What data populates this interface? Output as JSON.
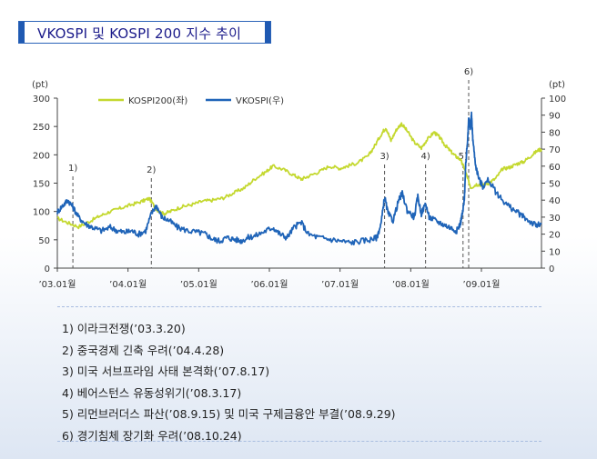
{
  "title": "VKOSPI 및 KOSPI 200 지수 추이",
  "colors": {
    "kospi200": "#c4d82f",
    "vkospi": "#1f64b8",
    "accent": "#1f59b2"
  },
  "notes": [
    "1) 이라크전쟁(’03.3.20)",
    "2) 중국경제 긴축 우려(’04.4.28)",
    "3) 미국 서브프라임 사태 본격화(’07.8.17)",
    "4) 베어스턴스 유동성위기(’08.3.17)",
    "5) 리먼브러더스 파산(’08.9.15) 및 미국 구제금융안 부결(’08.9.29)",
    "6) 경기침체 장기화 우려(’08.10.24)"
  ],
  "chart_data": {
    "type": "line",
    "left_axis_unit": "(pt)",
    "right_axis_unit": "(pt)",
    "ylim_left": [
      0,
      300
    ],
    "ylim_right": [
      0,
      100
    ],
    "left_ticks": [
      0,
      50,
      100,
      150,
      200,
      250,
      300
    ],
    "right_ticks": [
      0,
      10,
      20,
      30,
      40,
      50,
      60,
      70,
      80,
      90,
      100
    ],
    "x_ticks": [
      {
        "label": "’03.01월",
        "t": 2003.0
      },
      {
        "label": "’04.01월",
        "t": 2004.0
      },
      {
        "label": "’05.01월",
        "t": 2005.0
      },
      {
        "label": "’06.01월",
        "t": 2006.0
      },
      {
        "label": "’07.01월",
        "t": 2007.0
      },
      {
        "label": "’08.01월",
        "t": 2008.0
      },
      {
        "label": "’09.01월",
        "t": 2009.0
      }
    ],
    "xlim": [
      2003.0,
      2009.85
    ],
    "series": [
      {
        "name": "KOSPI200(좌)",
        "axis": "left",
        "color": "#c4d82f",
        "points": [
          [
            2003.0,
            88
          ],
          [
            2003.15,
            80
          ],
          [
            2003.3,
            73
          ],
          [
            2003.45,
            82
          ],
          [
            2003.6,
            92
          ],
          [
            2003.75,
            100
          ],
          [
            2003.9,
            106
          ],
          [
            2004.05,
            112
          ],
          [
            2004.2,
            118
          ],
          [
            2004.3,
            123
          ],
          [
            2004.4,
            104
          ],
          [
            2004.5,
            96
          ],
          [
            2004.6,
            100
          ],
          [
            2004.75,
            108
          ],
          [
            2004.9,
            112
          ],
          [
            2005.05,
            118
          ],
          [
            2005.2,
            120
          ],
          [
            2005.35,
            124
          ],
          [
            2005.5,
            133
          ],
          [
            2005.65,
            142
          ],
          [
            2005.8,
            158
          ],
          [
            2005.95,
            170
          ],
          [
            2006.05,
            180
          ],
          [
            2006.2,
            174
          ],
          [
            2006.35,
            164
          ],
          [
            2006.45,
            157
          ],
          [
            2006.55,
            162
          ],
          [
            2006.7,
            170
          ],
          [
            2006.85,
            180
          ],
          [
            2007.0,
            176
          ],
          [
            2007.1,
            180
          ],
          [
            2007.25,
            186
          ],
          [
            2007.4,
            198
          ],
          [
            2007.5,
            218
          ],
          [
            2007.6,
            240
          ],
          [
            2007.65,
            248
          ],
          [
            2007.72,
            225
          ],
          [
            2007.8,
            245
          ],
          [
            2007.87,
            255
          ],
          [
            2007.95,
            242
          ],
          [
            2008.05,
            222
          ],
          [
            2008.15,
            212
          ],
          [
            2008.22,
            225
          ],
          [
            2008.33,
            240
          ],
          [
            2008.4,
            232
          ],
          [
            2008.48,
            218
          ],
          [
            2008.55,
            208
          ],
          [
            2008.63,
            198
          ],
          [
            2008.7,
            192
          ],
          [
            2008.76,
            176
          ],
          [
            2008.8,
            160
          ],
          [
            2008.85,
            142
          ],
          [
            2008.93,
            148
          ],
          [
            2009.0,
            147
          ],
          [
            2009.1,
            150
          ],
          [
            2009.2,
            158
          ],
          [
            2009.3,
            175
          ],
          [
            2009.4,
            178
          ],
          [
            2009.5,
            184
          ],
          [
            2009.6,
            188
          ],
          [
            2009.7,
            198
          ],
          [
            2009.8,
            208
          ],
          [
            2009.85,
            210
          ]
        ]
      },
      {
        "name": "VKOSPI(우)",
        "axis": "right",
        "color": "#1f64b8",
        "points": [
          [
            2003.0,
            33
          ],
          [
            2003.08,
            37
          ],
          [
            2003.15,
            40
          ],
          [
            2003.22,
            36
          ],
          [
            2003.3,
            30
          ],
          [
            2003.4,
            26
          ],
          [
            2003.5,
            24
          ],
          [
            2003.62,
            22
          ],
          [
            2003.75,
            24
          ],
          [
            2003.85,
            22
          ],
          [
            2003.95,
            21
          ],
          [
            2004.05,
            22
          ],
          [
            2004.15,
            20
          ],
          [
            2004.25,
            22
          ],
          [
            2004.33,
            32
          ],
          [
            2004.4,
            37
          ],
          [
            2004.48,
            30
          ],
          [
            2004.58,
            28
          ],
          [
            2004.7,
            24
          ],
          [
            2004.85,
            22
          ],
          [
            2005.0,
            21
          ],
          [
            2005.1,
            20
          ],
          [
            2005.2,
            17
          ],
          [
            2005.3,
            16
          ],
          [
            2005.4,
            18
          ],
          [
            2005.5,
            17
          ],
          [
            2005.6,
            16
          ],
          [
            2005.7,
            18
          ],
          [
            2005.8,
            19
          ],
          [
            2005.95,
            22
          ],
          [
            2006.05,
            24
          ],
          [
            2006.15,
            20
          ],
          [
            2006.25,
            18
          ],
          [
            2006.35,
            24
          ],
          [
            2006.45,
            27
          ],
          [
            2006.55,
            20
          ],
          [
            2006.7,
            18
          ],
          [
            2006.85,
            17
          ],
          [
            2007.0,
            16
          ],
          [
            2007.15,
            15
          ],
          [
            2007.3,
            16
          ],
          [
            2007.45,
            17
          ],
          [
            2007.52,
            18
          ],
          [
            2007.58,
            26
          ],
          [
            2007.63,
            42
          ],
          [
            2007.68,
            32
          ],
          [
            2007.75,
            28
          ],
          [
            2007.83,
            40
          ],
          [
            2007.88,
            44
          ],
          [
            2007.95,
            34
          ],
          [
            2008.05,
            30
          ],
          [
            2008.1,
            42
          ],
          [
            2008.15,
            32
          ],
          [
            2008.21,
            38
          ],
          [
            2008.26,
            30
          ],
          [
            2008.35,
            28
          ],
          [
            2008.45,
            26
          ],
          [
            2008.55,
            24
          ],
          [
            2008.65,
            22
          ],
          [
            2008.7,
            26
          ],
          [
            2008.72,
            30
          ],
          [
            2008.74,
            34
          ],
          [
            2008.76,
            42
          ],
          [
            2008.78,
            62
          ],
          [
            2008.8,
            73
          ],
          [
            2008.82,
            88
          ],
          [
            2008.84,
            82
          ],
          [
            2008.86,
            90
          ],
          [
            2008.88,
            75
          ],
          [
            2008.92,
            60
          ],
          [
            2008.97,
            52
          ],
          [
            2009.02,
            48
          ],
          [
            2009.1,
            52
          ],
          [
            2009.2,
            45
          ],
          [
            2009.3,
            40
          ],
          [
            2009.4,
            36
          ],
          [
            2009.5,
            33
          ],
          [
            2009.6,
            30
          ],
          [
            2009.7,
            27
          ],
          [
            2009.78,
            25
          ],
          [
            2009.85,
            26
          ]
        ]
      }
    ],
    "events": [
      {
        "label": "1)",
        "t": 2003.22
      },
      {
        "label": "2)",
        "t": 2004.33
      },
      {
        "label": "3)",
        "t": 2007.63
      },
      {
        "label": "4)",
        "t": 2008.21
      },
      {
        "label": "5)",
        "t": 2008.74
      },
      {
        "label": "6)",
        "t": 2008.82
      }
    ]
  }
}
